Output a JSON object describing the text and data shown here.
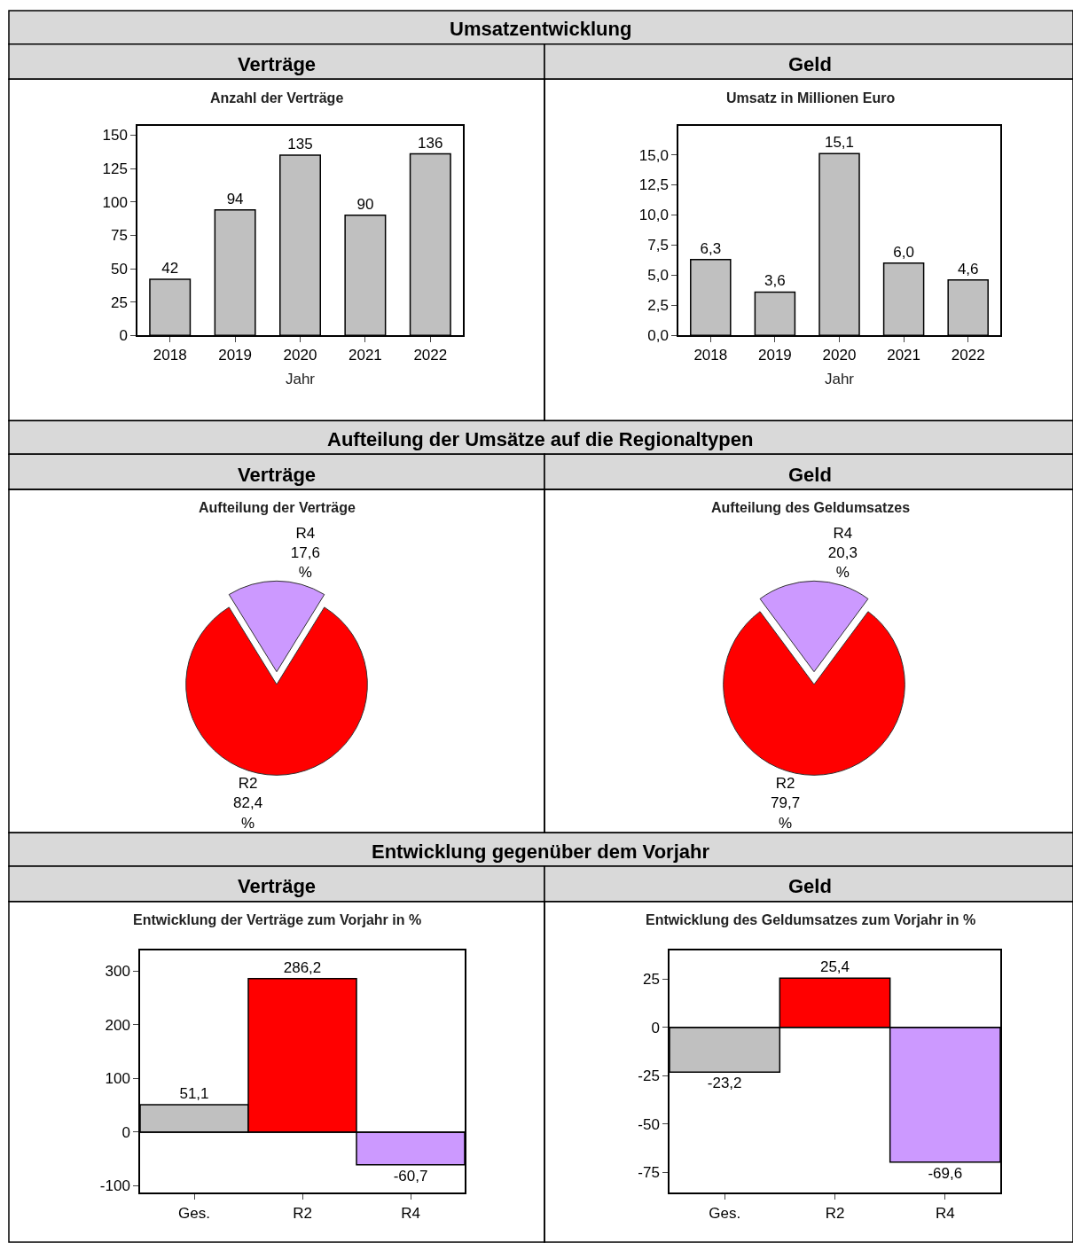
{
  "chart_data": [
    {
      "type": "other",
      "title": "Umsatzentwicklung",
      "annotations": [
        "Verträge",
        "Geld"
      ]
    },
    {
      "type": "bar",
      "title": "Anzahl der Verträge",
      "categories": [
        "2018",
        "2019",
        "2020",
        "2021",
        "2022"
      ],
      "values": [
        42,
        94,
        135,
        90,
        136
      ],
      "color": "#c0c0c0",
      "xlabel": "Jahr",
      "ylim": [
        0,
        157
      ],
      "yticks": [
        0,
        25,
        50,
        75,
        100,
        125,
        150
      ],
      "value_labels": [
        "42",
        "94",
        "135",
        "90",
        "136"
      ]
    },
    {
      "type": "bar",
      "title": "Umsatz in Millionen Euro",
      "categories": [
        "2018",
        "2019",
        "2020",
        "2021",
        "2022"
      ],
      "values": [
        6.3,
        3.6,
        15.1,
        6.0,
        4.6
      ],
      "color": "#c0c0c0",
      "xlabel": "Jahr",
      "ylim": [
        0,
        17.4
      ],
      "yticks": [
        {
          "value": 0,
          "label": "0,0"
        },
        {
          "value": 2.5,
          "label": "2,5"
        },
        {
          "value": 5,
          "label": "5,0"
        },
        {
          "value": 7.5,
          "label": "7,5"
        },
        {
          "value": 10,
          "label": "10,0"
        },
        {
          "value": 12.5,
          "label": "12,5"
        },
        {
          "value": 15,
          "label": "15,0"
        }
      ],
      "value_labels": [
        "6,3",
        "3,6",
        "15,1",
        "6,0",
        "4,6"
      ]
    },
    {
      "type": "other",
      "title": "Aufteilung der Umsätze auf die Regionaltypen",
      "annotations": [
        "Verträge",
        "Geld"
      ]
    },
    {
      "type": "pie",
      "title": "Aufteilung der Verträge",
      "categories": [
        "R4",
        "R2"
      ],
      "values": [
        17.6,
        82.4
      ],
      "colors": [
        "#cc99ff",
        "#ff0000"
      ],
      "value_labels": [
        "17,6 %",
        "82,4 %"
      ]
    },
    {
      "type": "pie",
      "title": "Aufteilung des Geldumsatzes",
      "categories": [
        "R4",
        "R2"
      ],
      "values": [
        20.3,
        79.7
      ],
      "colors": [
        "#cc99ff",
        "#ff0000"
      ],
      "value_labels": [
        "20,3 %",
        "79,7 %"
      ]
    },
    {
      "type": "other",
      "title": "Entwicklung gegenüber dem Vorjahr",
      "annotations": [
        "Verträge",
        "Geld"
      ]
    },
    {
      "type": "bar",
      "title": "Entwicklung der Verträge zum Vorjahr in %",
      "categories": [
        "Ges.",
        "R2",
        "R4"
      ],
      "values": [
        51.1,
        286.2,
        -60.7
      ],
      "colors": [
        "#c0c0c0",
        "#ff0000",
        "#cc99ff"
      ],
      "ylim": [
        -113,
        338
      ],
      "yticks": [
        -100,
        0,
        100,
        200,
        300
      ],
      "value_labels": [
        "51,1",
        "286,2",
        "-60,7"
      ]
    },
    {
      "type": "bar",
      "title": "Entwicklung des Geldumsatzes zum Vorjahr in %",
      "categories": [
        "Ges.",
        "R2",
        "R4"
      ],
      "values": [
        -23.2,
        25.4,
        -69.6
      ],
      "colors": [
        "#c0c0c0",
        "#ff0000",
        "#cc99ff"
      ],
      "ylim": [
        -85.5,
        39.5
      ],
      "yticks": [
        -75,
        -50,
        -25,
        0,
        25
      ],
      "value_labels": [
        "-23,2",
        "25,4",
        "-69,6"
      ]
    }
  ]
}
